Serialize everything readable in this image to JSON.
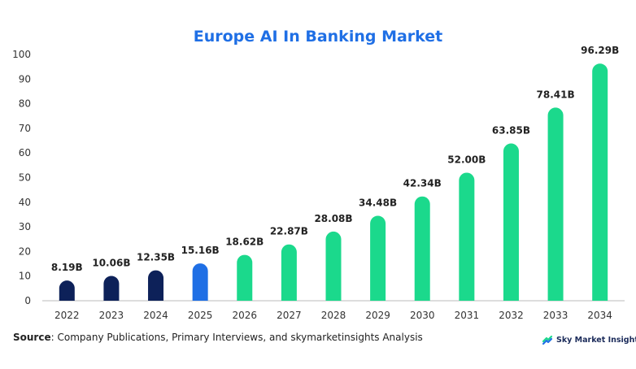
{
  "chart_data": {
    "type": "bar",
    "title": "Europe AI In Banking Market",
    "xlabel": "",
    "ylabel": "",
    "ylim": [
      0,
      100
    ],
    "yticks": [
      0,
      10,
      20,
      30,
      40,
      50,
      60,
      70,
      80,
      90,
      100
    ],
    "categories": [
      "2022",
      "2023",
      "2024",
      "2025",
      "2026",
      "2027",
      "2028",
      "2029",
      "2030",
      "2031",
      "2032",
      "2033",
      "2034"
    ],
    "values": [
      8.19,
      10.06,
      12.35,
      15.16,
      18.62,
      22.87,
      28.08,
      34.48,
      42.34,
      52.0,
      63.85,
      78.41,
      96.29
    ],
    "data_labels": [
      "8.19B",
      "10.06B",
      "12.35B",
      "15.16B",
      "18.62B",
      "22.87B",
      "28.08B",
      "34.48B",
      "42.34B",
      "52.00B",
      "63.85B",
      "78.41B",
      "96.29B"
    ],
    "bar_colors": [
      "#0d2159",
      "#0d2159",
      "#0d2159",
      "#1f6fe5",
      "#1bd98c",
      "#1bd98c",
      "#1bd98c",
      "#1bd98c",
      "#1bd98c",
      "#1bd98c",
      "#1bd98c",
      "#1bd98c",
      "#1bd98c"
    ],
    "grid": false,
    "legend": "none"
  },
  "footer": {
    "source_label": "Source",
    "source_text": ": Company Publications, Primary Interviews, and skymarketinsights Analysis",
    "brand_name": "Sky Market Insights"
  },
  "colors": {
    "title": "#1f6fe5",
    "historic": "#0d2159",
    "base_year": "#1f6fe5",
    "forecast": "#1bd98c"
  }
}
